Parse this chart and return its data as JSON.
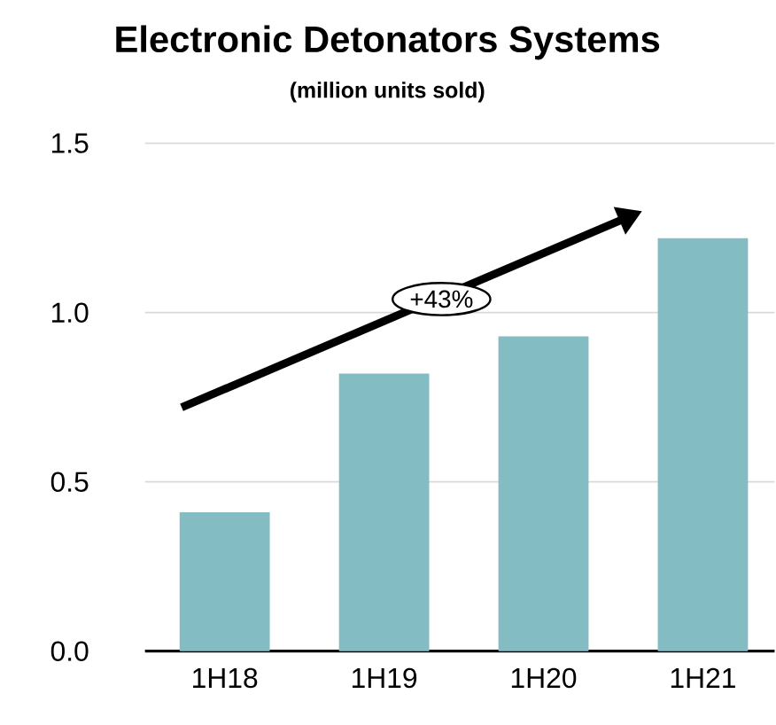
{
  "chart_data": {
    "type": "bar",
    "title": "Electronic Detonators Systems",
    "subtitle": "(million units sold)",
    "categories": [
      "1H18",
      "1H19",
      "1H20",
      "1H21"
    ],
    "values": [
      0.41,
      0.82,
      0.93,
      1.22
    ],
    "color": "#84bcc4",
    "ylim": [
      0,
      1.5
    ],
    "yticks": [
      {
        "value": 0,
        "label": "0.0"
      },
      {
        "value": 0.5,
        "label": "0.5"
      },
      {
        "value": 1,
        "label": "1.0"
      },
      {
        "value": 1.5,
        "label": "1.5"
      }
    ],
    "grid": "y",
    "annotations": [
      "+43%"
    ]
  }
}
